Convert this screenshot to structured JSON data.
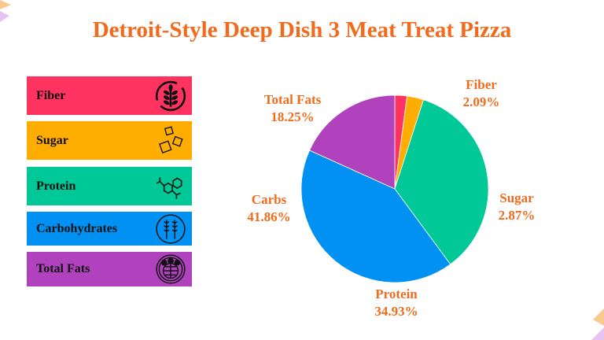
{
  "title": "Detroit-Style Deep Dish 3 Meat Treat Pizza",
  "legend": [
    {
      "label": "Fiber",
      "color": "#ff3360",
      "icon": "wheat-icon"
    },
    {
      "label": "Sugar",
      "color": "#ffad00",
      "icon": "sugar-cubes-icon"
    },
    {
      "label": "Protein",
      "color": "#00c896",
      "icon": "molecule-icon"
    },
    {
      "label": "Carbohydrates",
      "color": "#0091f2",
      "icon": "grain-icon"
    },
    {
      "label": "Total Fats",
      "color": "#b042be",
      "icon": "fat-globe-icon"
    }
  ],
  "chart_data": {
    "type": "pie",
    "slices": [
      {
        "name": "Fiber",
        "value": 2.09,
        "label": "2.09%",
        "color": "#ff3360"
      },
      {
        "name": "Sugar",
        "value": 2.87,
        "label": "2.87%",
        "color": "#ffad00"
      },
      {
        "name": "Protein",
        "value": 34.93,
        "label": "34.93%",
        "color": "#00c896"
      },
      {
        "name": "Carbs",
        "value": 41.86,
        "label": "41.86%",
        "color": "#0091f2"
      },
      {
        "name": "Total Fats",
        "value": 18.25,
        "label": "18.25%",
        "color": "#b042be"
      }
    ],
    "start": "top",
    "direction": "clockwise"
  }
}
